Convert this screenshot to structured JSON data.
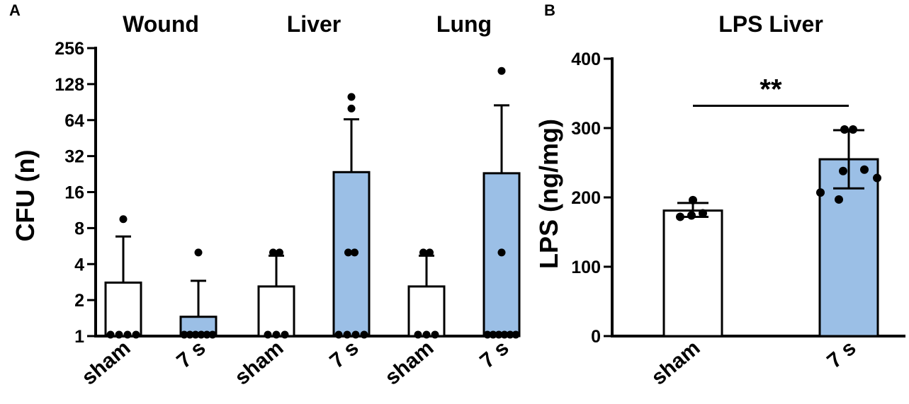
{
  "panels": [
    {
      "letter": "A",
      "chart_data": {
        "type": "bar",
        "yscale": "log2",
        "ylabel": "CFU (n)",
        "ylim": [
          1,
          256
        ],
        "yticks": [
          1,
          2,
          4,
          8,
          16,
          32,
          64,
          128,
          256
        ],
        "grid": false,
        "groups": [
          {
            "title": "Wound",
            "bars": [
              {
                "label": "sham",
                "fill": "#ffffff",
                "mean": 2.8,
                "err_upper": 6.8,
                "points": [
                  1,
                  1,
                  1,
                  1,
                  9.5
                ]
              },
              {
                "label": "7 s",
                "fill": "#9bbfe6",
                "mean": 1.45,
                "err_upper": 2.9,
                "points": [
                  1,
                  1,
                  1,
                  1,
                  1,
                  1,
                  5
                ]
              }
            ]
          },
          {
            "title": "Liver",
            "bars": [
              {
                "label": "sham",
                "fill": "#ffffff",
                "mean": 2.6,
                "err_upper": 4.7,
                "points": [
                  1,
                  1,
                  1,
                  5,
                  5
                ]
              },
              {
                "label": "7 s",
                "fill": "#9bbfe6",
                "mean": 23.5,
                "err_upper": 65,
                "points": [
                  1,
                  1,
                  1,
                  1,
                  5,
                  5,
                  80,
                  100
                ]
              }
            ]
          },
          {
            "title": "Lung",
            "bars": [
              {
                "label": "sham",
                "fill": "#ffffff",
                "mean": 2.6,
                "err_upper": 4.7,
                "points": [
                  1,
                  1,
                  1,
                  5,
                  5
                ]
              },
              {
                "label": "7 s",
                "fill": "#9bbfe6",
                "mean": 23,
                "err_upper": 85,
                "points": [
                  1,
                  1,
                  1,
                  1,
                  1,
                  1,
                  5,
                  165
                ]
              }
            ]
          }
        ]
      }
    },
    {
      "letter": "B",
      "chart_data": {
        "type": "bar",
        "title": "LPS Liver",
        "ylabel": "LPS (ng/mg)",
        "ylim": [
          0,
          400
        ],
        "yticks": [
          0,
          100,
          200,
          300,
          400
        ],
        "grid": false,
        "bars": [
          {
            "label": "sham",
            "fill": "#ffffff",
            "mean": 181,
            "err_low": 172,
            "err_high": 192,
            "points": [
              172,
              174,
              177,
              196
            ]
          },
          {
            "label": "7 s",
            "fill": "#9bbfe6",
            "mean": 255,
            "err_low": 213,
            "err_high": 297,
            "points": [
              197,
              207,
              228,
              238,
              240,
              298,
              298
            ]
          }
        ],
        "annotations": [
          {
            "text": "**",
            "between": [
              "sham",
              "7 s"
            ],
            "y": 328
          }
        ]
      }
    }
  ]
}
